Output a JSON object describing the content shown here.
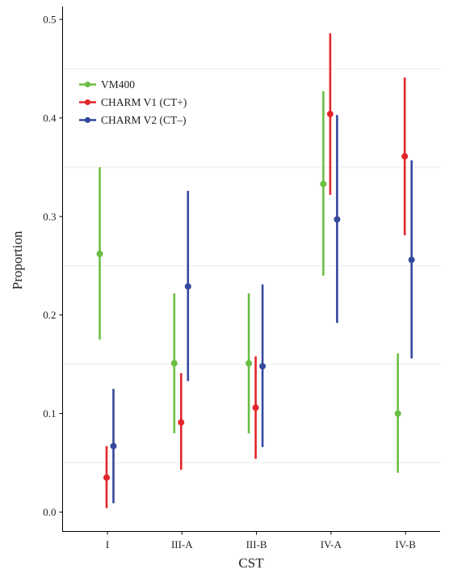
{
  "chart_data": {
    "type": "scatter",
    "title": "",
    "xlabel": "CST",
    "ylabel": "Proportion",
    "ylim": [
      0,
      0.5
    ],
    "yticks": [
      "0.0",
      "0.1",
      "0.2",
      "0.3",
      "0.4",
      "0.5"
    ],
    "categories": [
      "I",
      "III-A",
      "III-B",
      "IV-A",
      "IV-B"
    ],
    "grid": "horizontal minor lines only",
    "legend_position": "top-left",
    "series": [
      {
        "name": "VM400",
        "color": "#6abf45",
        "values": [
          0.262,
          0.151,
          0.151,
          0.333,
          0.1
        ],
        "lower": [
          0.175,
          0.08,
          0.08,
          0.24,
          0.04
        ],
        "upper": [
          0.35,
          0.222,
          0.222,
          0.427,
          0.161
        ]
      },
      {
        "name": "CHARM V1 (CT+)",
        "color": "#e3262b",
        "values": [
          0.035,
          0.091,
          0.106,
          0.404,
          0.361
        ],
        "lower": [
          0.004,
          0.043,
          0.054,
          0.322,
          0.281
        ],
        "upper": [
          0.067,
          0.141,
          0.158,
          0.486,
          0.441
        ]
      },
      {
        "name": "CHARM V2 (CT–)",
        "color": "#34489c",
        "values": [
          0.067,
          0.229,
          0.148,
          0.297,
          0.256
        ],
        "lower": [
          0.009,
          0.133,
          0.066,
          0.192,
          0.156
        ],
        "upper": [
          0.125,
          0.326,
          0.231,
          0.403,
          0.357
        ]
      }
    ]
  }
}
